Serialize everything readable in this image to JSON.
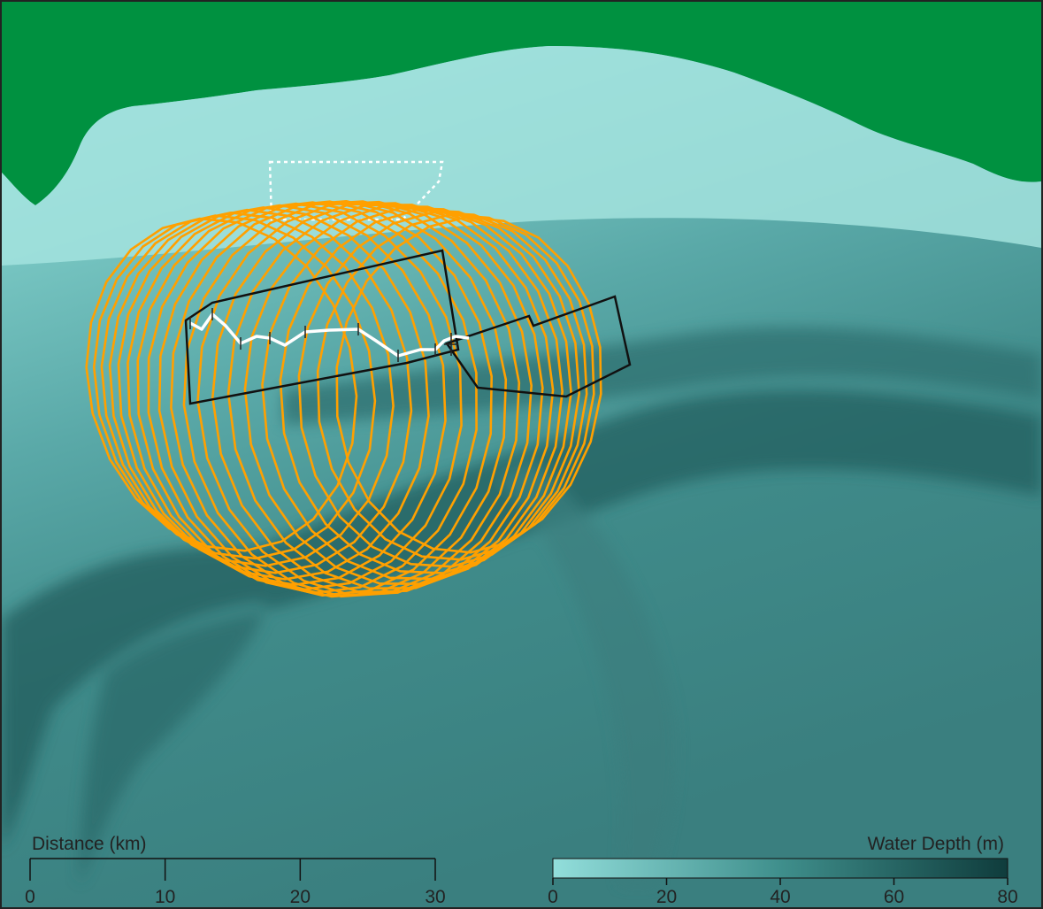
{
  "map": {
    "land_color": "#009140",
    "shallow_color": "#92dedb",
    "deep_color": "#0f3c3c",
    "contour_color": "#ffa000",
    "boundary_color": "#111111",
    "track_color": "#ffffff"
  },
  "distance_scale": {
    "label": "Distance (km)",
    "ticks": [
      "0",
      "10",
      "20",
      "30"
    ]
  },
  "depth_legend": {
    "label": "Water Depth (m)",
    "ticks": [
      "0",
      "20",
      "40",
      "60",
      "80"
    ]
  }
}
